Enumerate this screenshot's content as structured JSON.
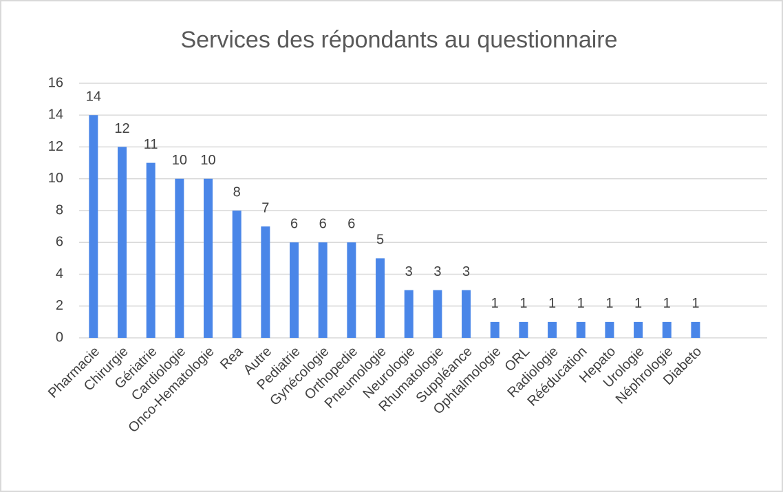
{
  "chart_data": {
    "type": "bar",
    "title": "Services des répondants au questionnaire",
    "categories": [
      "Pharmacie",
      "Chirurgie",
      "Gériatrie",
      "Cardiologie",
      "Onco-Hematologie",
      "Rea",
      "Autre",
      "Pediatrie",
      "Gynécologie",
      "Orthopedie",
      "Pneumologie",
      "Neurologie",
      "Rhumatologie",
      "Suppléance",
      "Ophtalmologie",
      "ORL",
      "Radiologie",
      "Rééducation",
      "Hepato",
      "Urologie",
      "Néphrologie",
      "Diabeto"
    ],
    "values": [
      14,
      12,
      11,
      10,
      10,
      8,
      7,
      6,
      6,
      6,
      5,
      3,
      3,
      3,
      1,
      1,
      1,
      1,
      1,
      1,
      1,
      1
    ],
    "color": "#4a86e8",
    "ylim": [
      0,
      16
    ],
    "yticks": [
      0,
      2,
      4,
      6,
      8,
      10,
      12,
      14,
      16
    ],
    "grid": true
  }
}
